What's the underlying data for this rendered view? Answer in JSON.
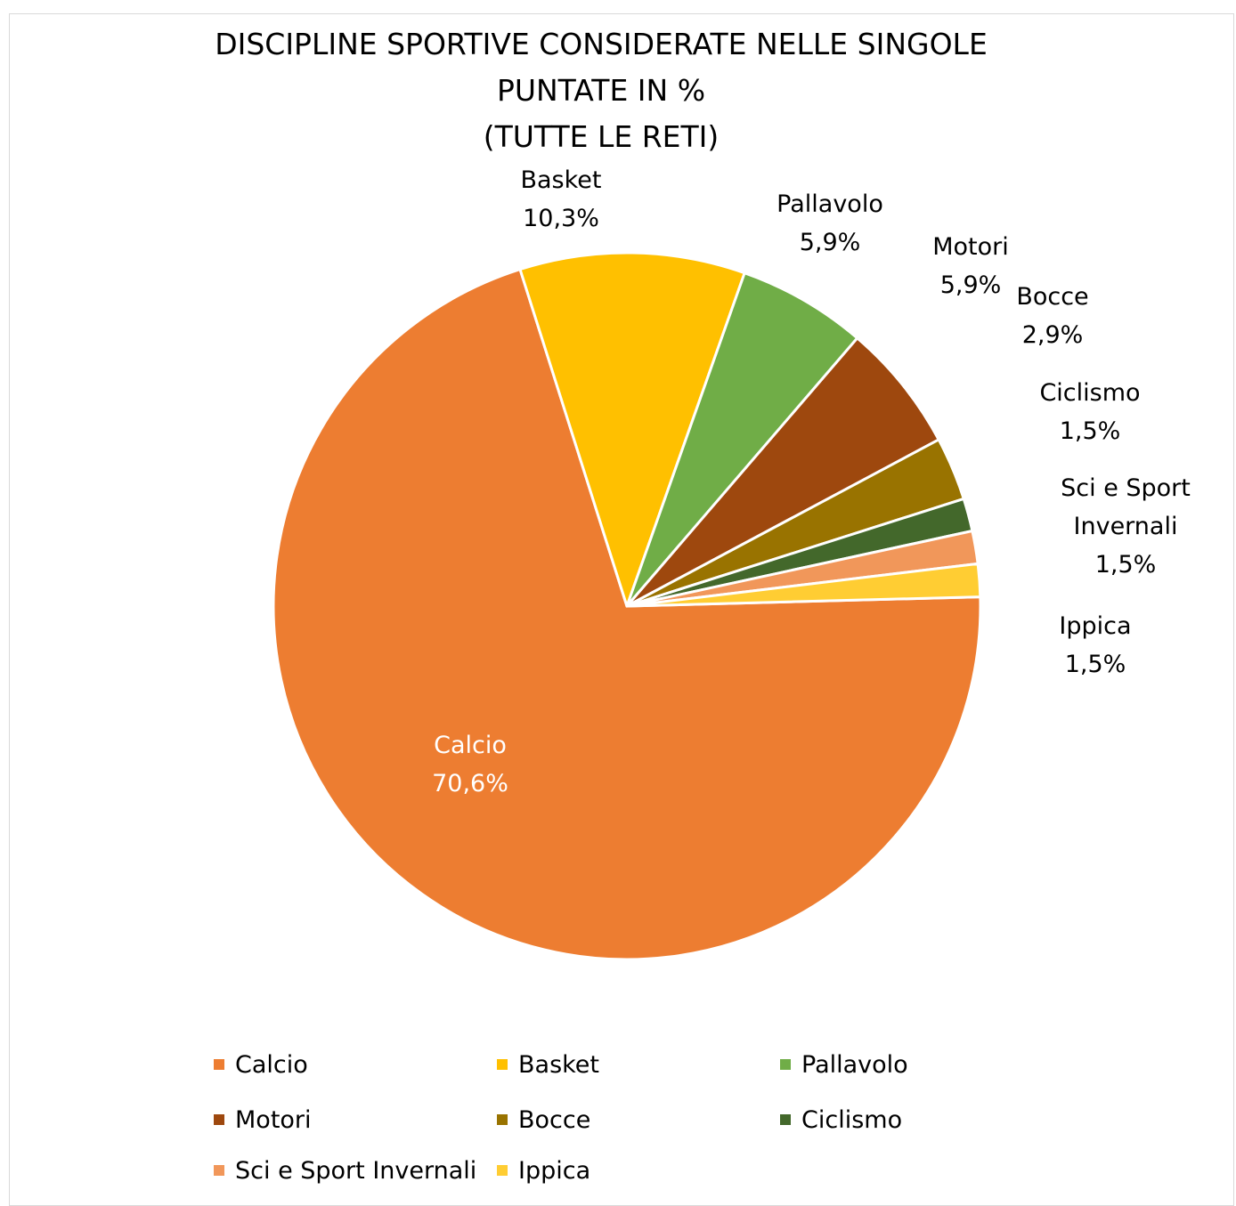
{
  "chart_data": {
    "type": "pie",
    "title": [
      "DISCIPLINE SPORTIVE CONSIDERATE NELLE SINGOLE",
      "PUNTATE IN %",
      "(TUTTE LE RETI)"
    ],
    "slices": [
      {
        "name": "Calcio",
        "value": 70.6,
        "label": "70,6%",
        "color": "#ED7D31",
        "label_color": "#FFFFFF"
      },
      {
        "name": "Basket",
        "value": 10.3,
        "label": "10,3%",
        "color": "#FFC000",
        "label_color": "#000000"
      },
      {
        "name": "Pallavolo",
        "value": 5.9,
        "label": "5,9%",
        "color": "#70AD47",
        "label_color": "#000000"
      },
      {
        "name": "Motori",
        "value": 5.9,
        "label": "5,9%",
        "color": "#9E480E",
        "label_color": "#000000"
      },
      {
        "name": "Bocce",
        "value": 2.9,
        "label": "2,9%",
        "color": "#997300",
        "label_color": "#000000"
      },
      {
        "name": "Ciclismo",
        "value": 1.5,
        "label": "1,5%",
        "color": "#43682B",
        "label_color": "#000000"
      },
      {
        "name": "Sci e Sport Invernali",
        "value": 1.5,
        "label": "1,5%",
        "color": "#F1975A",
        "label_color": "#000000"
      },
      {
        "name": "Ippica",
        "value": 1.5,
        "label": "1,5%",
        "color": "#FFCD33",
        "label_color": "#000000"
      }
    ],
    "legend_position": "bottom"
  }
}
